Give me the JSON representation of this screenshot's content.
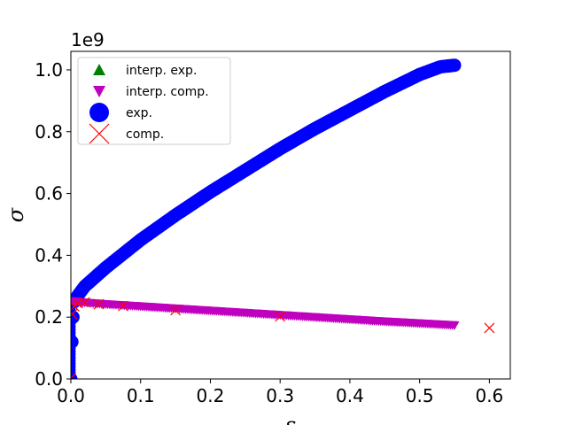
{
  "chart_data": {
    "type": "scatter",
    "title": "",
    "xlabel": "ε",
    "ylabel": "σ",
    "y_offset_text": "1e9",
    "xlim": [
      0,
      0.63
    ],
    "ylim": [
      0,
      1.06
    ],
    "grid": false,
    "legend_position": "top-left",
    "x_ticks": [
      0.0,
      0.1,
      0.2,
      0.3,
      0.4,
      0.5,
      0.6
    ],
    "x_tick_labels": [
      "0.0",
      "0.1",
      "0.2",
      "0.3",
      "0.4",
      "0.5",
      "0.6"
    ],
    "y_ticks": [
      0.0,
      0.2,
      0.4,
      0.6,
      0.8,
      1.0
    ],
    "y_tick_labels": [
      "0.0",
      "0.2",
      "0.4",
      "0.6",
      "0.8",
      "1.0"
    ],
    "series": [
      {
        "name": "interp. exp.",
        "marker": "triangle-up",
        "color": "#008000",
        "x": [],
        "y": []
      },
      {
        "name": "interp. comp.",
        "marker": "triangle-down",
        "color": "#bf00bf",
        "x": [
          0.0,
          0.02,
          0.05,
          0.1,
          0.15,
          0.2,
          0.25,
          0.3,
          0.35,
          0.4,
          0.45,
          0.5,
          0.55
        ],
        "y": [
          0.252,
          0.247,
          0.242,
          0.235,
          0.228,
          0.221,
          0.214,
          0.207,
          0.2,
          0.193,
          0.186,
          0.18,
          0.174
        ]
      },
      {
        "name": "exp.",
        "marker": "circle",
        "color": "#0000ff",
        "x": [
          0.0,
          0.0015,
          0.003,
          0.005,
          0.01,
          0.02,
          0.03,
          0.05,
          0.075,
          0.1,
          0.15,
          0.2,
          0.25,
          0.3,
          0.35,
          0.4,
          0.45,
          0.5,
          0.53,
          0.55
        ],
        "y": [
          0.0,
          0.12,
          0.2,
          0.25,
          0.27,
          0.3,
          0.32,
          0.36,
          0.405,
          0.45,
          0.53,
          0.605,
          0.675,
          0.745,
          0.81,
          0.87,
          0.93,
          0.985,
          1.01,
          1.015
        ]
      },
      {
        "name": "comp.",
        "marker": "x",
        "color": "#ff0000",
        "x": [
          0.0,
          0.002,
          0.005,
          0.01,
          0.02,
          0.04,
          0.075,
          0.15,
          0.3,
          0.6
        ],
        "y": [
          0.003,
          0.21,
          0.235,
          0.245,
          0.248,
          0.242,
          0.236,
          0.222,
          0.202,
          0.165
        ]
      }
    ]
  }
}
